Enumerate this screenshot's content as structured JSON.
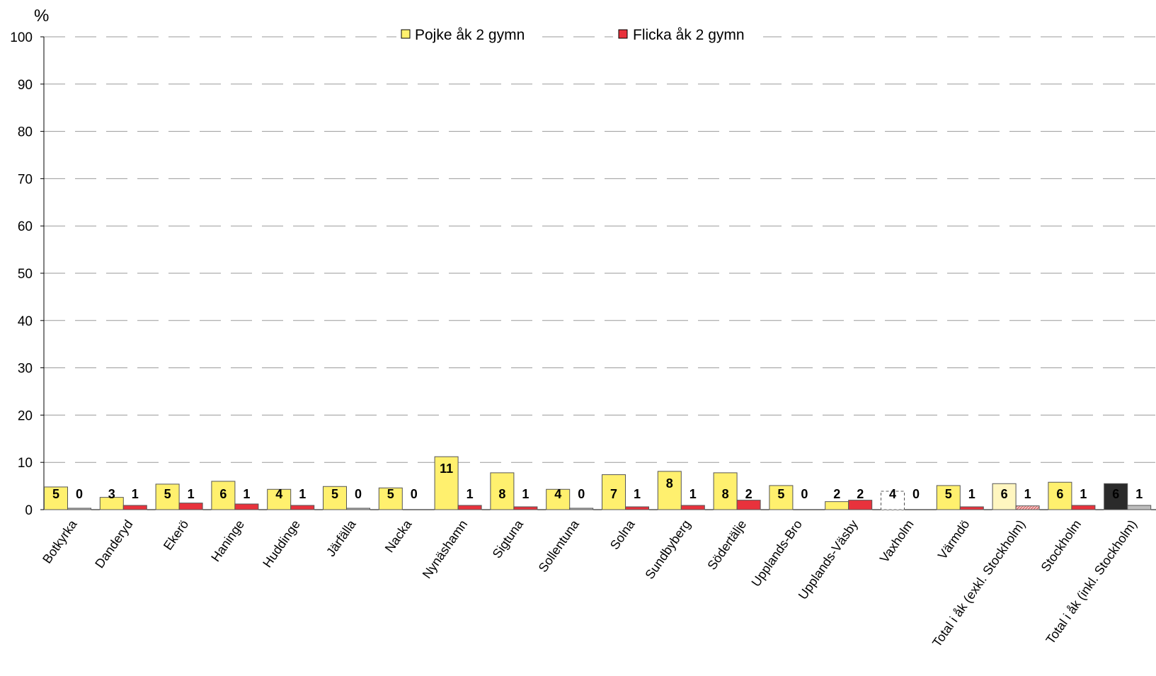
{
  "chart_data": {
    "type": "bar",
    "ylabel": "%",
    "ylim": [
      0,
      100
    ],
    "yticks": [
      "0",
      "10",
      "20",
      "30",
      "40",
      "50",
      "60",
      "70",
      "80",
      "90",
      "100"
    ],
    "grid": "dashed horizontal",
    "legend_position": "top",
    "categories": [
      "Botkyrka",
      "Danderyd",
      "Ekerö",
      "Haninge",
      "Huddinge",
      "Järfälla",
      "Nacka",
      "Nynäshamn",
      "Sigtuna",
      "Sollentuna",
      "Solna",
      "Sundbyberg",
      "Södertälje",
      "Upplands-Bro",
      "Upplands-Väsby",
      "Vaxholm",
      "Värmdö",
      "Total i åk (exkl. Stockholm)",
      "Stockholm",
      "Total i åk (inkl. Stockholm)"
    ],
    "series": [
      {
        "name": "Pojke åk 2 gymn",
        "color": "#FFF06E",
        "values": [
          4.8,
          2.6,
          5.4,
          6.0,
          4.3,
          4.9,
          4.6,
          11.2,
          7.8,
          4.3,
          7.4,
          8.1,
          7.8,
          5.1,
          1.7,
          3.9,
          5.1,
          5.5,
          5.8,
          5.5
        ],
        "labels": [
          "5",
          "3",
          "5",
          "6",
          "4",
          "5",
          "5",
          "11",
          "8",
          "4",
          "7",
          "8",
          "8",
          "5",
          "2",
          "4",
          "5",
          "6",
          "6",
          "6"
        ]
      },
      {
        "name": "Flicka åk 2 gymn",
        "color": "#E8323C",
        "values": [
          0.3,
          0.9,
          1.4,
          1.2,
          0.9,
          0.3,
          null,
          0.9,
          0.6,
          0.3,
          0.6,
          0.9,
          2.0,
          null,
          2.0,
          null,
          0.6,
          0.8,
          0.9,
          0.9
        ],
        "labels": [
          "0",
          "1",
          "1",
          "1",
          "1",
          "0",
          "0",
          "1",
          "1",
          "0",
          "1",
          "1",
          "2",
          "0",
          "2",
          "0",
          "1",
          "1",
          "1",
          "1"
        ]
      }
    ]
  },
  "styles": {
    "pojke_fill": "#FFF06E",
    "flicka_fill": "#E8323C",
    "low_value_fill": "#BDBDBD",
    "total_excl_pojke_fill": "#FFF6C0",
    "total_excl_flicka_fill": "#F2B0B0",
    "total_incl_pojke_fill": "#2B2B2B",
    "total_incl_flicka_fill": "#BDBDBD",
    "gridline_color": "#9A9A9A",
    "axis_color": "#000000"
  }
}
